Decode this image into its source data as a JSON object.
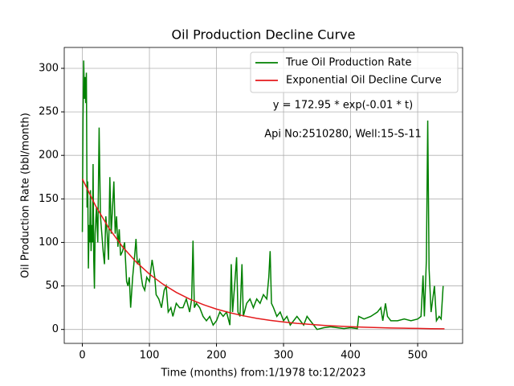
{
  "chart_data": {
    "type": "line",
    "title": "Oil Production Decline Curve",
    "xlabel": "Time (months) from:1/1978 to:12/2023",
    "ylabel": "Oil Production Rate (bbl/month)",
    "annotations": [
      "y = 172.95 * exp(-0.01 * t)",
      "Api No:2510280, Well:15-S-11"
    ],
    "xlim": [
      -27,
      567
    ],
    "ylim": [
      -16,
      324
    ],
    "xticks": [
      0,
      100,
      200,
      300,
      400,
      500
    ],
    "yticks": [
      0,
      50,
      100,
      150,
      200,
      250,
      300
    ],
    "grid": true,
    "legend": "upper right",
    "series": [
      {
        "name": "True Oil Production Rate",
        "color": "#008000",
        "x": [
          0,
          1,
          2,
          3,
          4,
          5,
          6,
          7,
          8,
          9,
          10,
          11,
          12,
          13,
          14,
          15,
          16,
          17,
          18,
          19,
          21,
          23,
          25,
          27,
          29,
          31,
          33,
          35,
          37,
          39,
          41,
          43,
          45,
          47,
          49,
          51,
          53,
          55,
          57,
          60,
          63,
          66,
          68,
          70,
          72,
          75,
          78,
          80,
          82,
          85,
          88,
          90,
          93,
          96,
          100,
          104,
          108,
          110,
          114,
          118,
          122,
          125,
          128,
          132,
          135,
          140,
          145,
          150,
          155,
          160,
          163,
          165,
          167,
          170,
          175,
          180,
          185,
          190,
          195,
          200,
          205,
          210,
          215,
          220,
          222,
          224,
          227,
          230,
          232,
          235,
          238,
          240,
          245,
          250,
          255,
          260,
          265,
          270,
          275,
          278,
          280,
          282,
          285,
          290,
          295,
          300,
          305,
          310,
          315,
          320,
          325,
          330,
          335,
          340,
          345,
          350,
          360,
          370,
          380,
          390,
          400,
          410,
          412,
          420,
          430,
          440,
          445,
          448,
          452,
          455,
          460,
          470,
          480,
          490,
          500,
          505,
          508,
          510,
          513,
          515,
          517,
          520,
          525,
          528,
          532,
          535,
          538
        ],
        "values": [
          112,
          240,
          309,
          265,
          290,
          260,
          295,
          140,
          170,
          70,
          120,
          100,
          160,
          90,
          120,
          100,
          190,
          80,
          47,
          110,
          140,
          100,
          232,
          130,
          110,
          90,
          75,
          130,
          110,
          80,
          175,
          110,
          140,
          170,
          110,
          130,
          95,
          115,
          85,
          90,
          100,
          55,
          50,
          60,
          25,
          60,
          85,
          104,
          75,
          80,
          60,
          50,
          45,
          60,
          55,
          80,
          60,
          40,
          35,
          25,
          45,
          50,
          20,
          25,
          15,
          30,
          25,
          25,
          35,
          20,
          35,
          102,
          25,
          30,
          25,
          15,
          10,
          15,
          5,
          10,
          20,
          15,
          20,
          5,
          75,
          20,
          50,
          83,
          20,
          15,
          75,
          15,
          30,
          35,
          25,
          35,
          30,
          40,
          35,
          60,
          90,
          30,
          25,
          15,
          20,
          10,
          15,
          5,
          10,
          15,
          10,
          5,
          15,
          10,
          5,
          0,
          2,
          3,
          2,
          1,
          2,
          1,
          15,
          12,
          15,
          20,
          25,
          10,
          30,
          15,
          10,
          10,
          12,
          10,
          12,
          15,
          62,
          15,
          80,
          240,
          70,
          20,
          50,
          10,
          15,
          12,
          50
        ]
      },
      {
        "name": "Exponential Oil Decline Curve",
        "color": "#e41a1c",
        "x": [
          0,
          20,
          40,
          60,
          80,
          100,
          120,
          140,
          160,
          180,
          200,
          220,
          240,
          260,
          280,
          300,
          320,
          340,
          360,
          380,
          400,
          420,
          440,
          460,
          480,
          500,
          520,
          540
        ],
        "values": [
          172.95,
          141.6,
          115.9,
          94.9,
          77.7,
          63.6,
          52.1,
          42.6,
          34.9,
          28.6,
          23.4,
          19.2,
          15.7,
          12.8,
          10.5,
          8.6,
          7.0,
          5.8,
          4.7,
          3.9,
          3.2,
          2.6,
          2.1,
          1.7,
          1.4,
          1.2,
          0.9,
          0.8
        ]
      }
    ]
  }
}
